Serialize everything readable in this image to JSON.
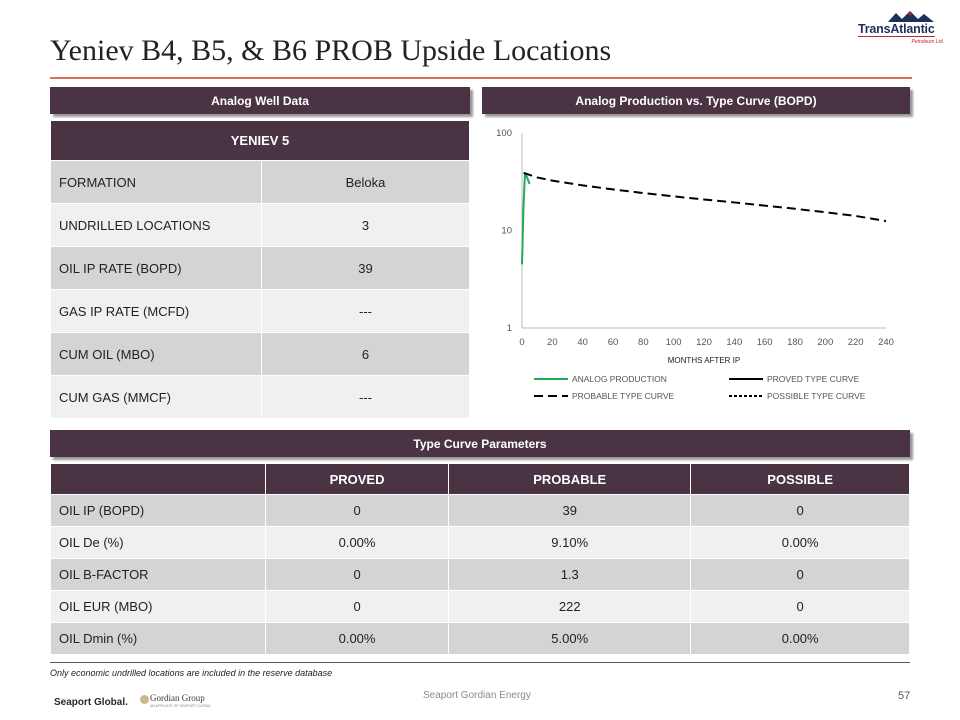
{
  "title": "Yeniev B4, B5, & B6 PROB Upside Locations",
  "logo": {
    "name": "TransAtlantic",
    "sub": "Petroleum Ltd."
  },
  "sections": {
    "analog_well": "Analog Well Data",
    "production": "Analog Production vs. Type Curve (BOPD)",
    "type_curve": "Type Curve Parameters"
  },
  "well_table": {
    "header": "YENIEV 5",
    "rows": [
      {
        "label": "FORMATION",
        "value": "Beloka"
      },
      {
        "label": "UNDRILLED LOCATIONS",
        "value": "3"
      },
      {
        "label": "OIL IP RATE (BOPD)",
        "value": "39"
      },
      {
        "label": "GAS IP RATE (MCFD)",
        "value": "---"
      },
      {
        "label": "CUM OIL (MBO)",
        "value": "6"
      },
      {
        "label": "CUM GAS (MMCF)",
        "value": "---"
      }
    ]
  },
  "type_curve_table": {
    "columns": [
      "",
      "PROVED",
      "PROBABLE",
      "POSSIBLE"
    ],
    "rows": [
      {
        "label": "OIL IP (BOPD)",
        "values": [
          "0",
          "39",
          "0"
        ]
      },
      {
        "label": "OIL De (%)",
        "values": [
          "0.00%",
          "9.10%",
          "0.00%"
        ]
      },
      {
        "label": "OIL B-FACTOR",
        "values": [
          "0",
          "1.3",
          "0"
        ]
      },
      {
        "label": "OIL EUR (MBO)",
        "values": [
          "0",
          "222",
          "0"
        ]
      },
      {
        "label": "OIL Dmin (%)",
        "values": [
          "0.00%",
          "5.00%",
          "0.00%"
        ]
      }
    ]
  },
  "note": "Only economic undrilled locations are included in the reserve database",
  "footer": {
    "center": "Seaport Gordian Energy",
    "page": "57",
    "logo1": "Seaport Global.",
    "logo2": "Gordian Group",
    "logo2_sub": "AN AFFILIATE OF SEAPORT GLOBAL"
  },
  "chart_data": {
    "type": "line",
    "title": "",
    "xlabel": "MONTHS AFTER IP",
    "ylabel": "",
    "xlim": [
      0,
      240
    ],
    "ylim": [
      1,
      100
    ],
    "yscale": "log",
    "xticks": [
      0,
      20,
      40,
      60,
      80,
      100,
      120,
      140,
      160,
      180,
      200,
      220,
      240
    ],
    "yticks": [
      1,
      10,
      100
    ],
    "grid": false,
    "legend_position": "bottom",
    "series": [
      {
        "name": "ANALOG PRODUCTION",
        "color": "#22aa55",
        "style": "solid",
        "x": [
          0,
          1,
          2,
          3,
          4,
          5
        ],
        "y": [
          4.5,
          18,
          39,
          36,
          33,
          30
        ]
      },
      {
        "name": "PROVED TYPE CURVE",
        "color": "#000000",
        "style": "solid",
        "x": [],
        "y": []
      },
      {
        "name": "PROBABLE TYPE CURVE",
        "color": "#000000",
        "style": "dashed",
        "x": [
          1,
          10,
          20,
          40,
          60,
          80,
          100,
          120,
          140,
          160,
          180,
          200,
          220,
          240
        ],
        "y": [
          39,
          35,
          32.5,
          29,
          26.4,
          24.2,
          22.4,
          20.8,
          19.4,
          18,
          16.7,
          15.4,
          14.1,
          12.5
        ]
      },
      {
        "name": "POSSIBLE TYPE CURVE",
        "color": "#000000",
        "style": "dotted",
        "x": [],
        "y": []
      }
    ]
  }
}
